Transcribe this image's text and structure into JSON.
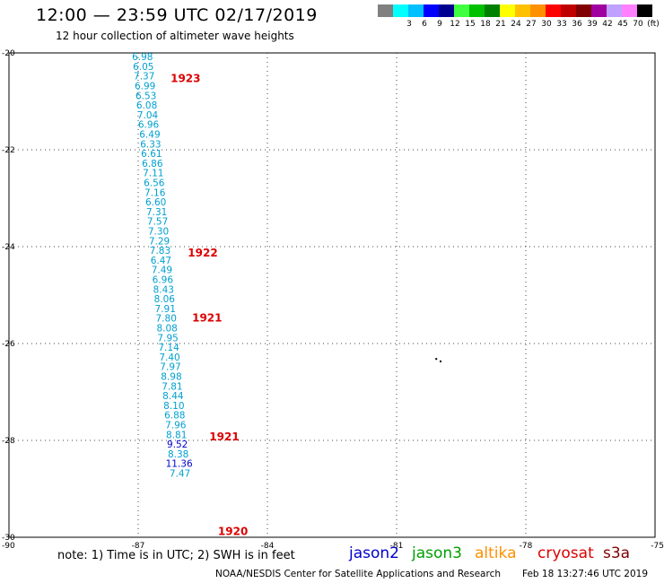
{
  "header": {
    "title": "12:00 — 23:59 UTC 02/17/2019",
    "subtitle": "12 hour collection of altimeter wave heights"
  },
  "legend": {
    "swatches": [
      {
        "color": "#808080",
        "label": ""
      },
      {
        "color": "#00ffff",
        "label": "3"
      },
      {
        "color": "#00c0ff",
        "label": "6"
      },
      {
        "color": "#0000ff",
        "label": "9"
      },
      {
        "color": "#000090",
        "label": "12"
      },
      {
        "color": "#40ff40",
        "label": "15"
      },
      {
        "color": "#00c000",
        "label": "18"
      },
      {
        "color": "#008000",
        "label": "21"
      },
      {
        "color": "#ffff00",
        "label": "24"
      },
      {
        "color": "#ffc000",
        "label": "27"
      },
      {
        "color": "#ff9000",
        "label": "30"
      },
      {
        "color": "#ff0000",
        "label": "33"
      },
      {
        "color": "#c00000",
        "label": "36"
      },
      {
        "color": "#800000",
        "label": "39"
      },
      {
        "color": "#a000a0",
        "label": "42"
      },
      {
        "color": "#c0a0ff",
        "label": "45"
      },
      {
        "color": "#ff80ff",
        "label": "70"
      },
      {
        "color": "#000000",
        "label": "(ft)"
      }
    ]
  },
  "map": {
    "lon_range": [
      -90,
      -75
    ],
    "lat_range": [
      -30,
      -20
    ],
    "lon_ticks": [
      "-90",
      "-87",
      "-84",
      "-81",
      "-78",
      "-75"
    ],
    "lat_ticks": [
      "-20",
      "-22",
      "-24",
      "-26",
      "-28",
      "-30"
    ],
    "lon_tick_values": [
      -90,
      -87,
      -84,
      -81,
      -78,
      -75
    ],
    "lat_tick_values": [
      -20,
      -22,
      -24,
      -26,
      -28,
      -30
    ],
    "grid": "dotted",
    "observations": [
      {
        "lon": -86.9,
        "lat": -20.15,
        "swh": "6.98",
        "color": "#00a0d0"
      },
      {
        "lon": -86.88,
        "lat": -20.35,
        "swh": "6.05",
        "color": "#00a0d0"
      },
      {
        "lon": -86.86,
        "lat": -20.55,
        "swh": "7.37",
        "color": "#00a0d0"
      },
      {
        "lon": -86.84,
        "lat": -20.75,
        "swh": "6.99",
        "color": "#00a0d0"
      },
      {
        "lon": -86.82,
        "lat": -20.95,
        "swh": "6.53",
        "color": "#00a0d0"
      },
      {
        "lon": -86.8,
        "lat": -21.15,
        "swh": "6.08",
        "color": "#00a0d0"
      },
      {
        "lon": -86.78,
        "lat": -21.35,
        "swh": "7.04",
        "color": "#00a0d0"
      },
      {
        "lon": -86.76,
        "lat": -21.55,
        "swh": "6.96",
        "color": "#00a0d0"
      },
      {
        "lon": -86.73,
        "lat": -21.75,
        "swh": "6.49",
        "color": "#00a0d0"
      },
      {
        "lon": -86.71,
        "lat": -21.95,
        "swh": "6.33",
        "color": "#00a0d0"
      },
      {
        "lon": -86.69,
        "lat": -22.15,
        "swh": "6.61",
        "color": "#00a0d0"
      },
      {
        "lon": -86.67,
        "lat": -22.35,
        "swh": "6.86",
        "color": "#00a0d0"
      },
      {
        "lon": -86.65,
        "lat": -22.55,
        "swh": "7.11",
        "color": "#00a0d0"
      },
      {
        "lon": -86.63,
        "lat": -22.75,
        "swh": "6.56",
        "color": "#00a0d0"
      },
      {
        "lon": -86.61,
        "lat": -22.95,
        "swh": "7.16",
        "color": "#00a0d0"
      },
      {
        "lon": -86.59,
        "lat": -23.15,
        "swh": "6.60",
        "color": "#00a0d0"
      },
      {
        "lon": -86.57,
        "lat": -23.35,
        "swh": "7.31",
        "color": "#00a0d0"
      },
      {
        "lon": -86.55,
        "lat": -23.55,
        "swh": "7.57",
        "color": "#00a0d0"
      },
      {
        "lon": -86.53,
        "lat": -23.75,
        "swh": "7.30",
        "color": "#00a0d0"
      },
      {
        "lon": -86.51,
        "lat": -23.95,
        "swh": "7.29",
        "color": "#00a0d0"
      },
      {
        "lon": -86.49,
        "lat": -24.15,
        "swh": "7.83",
        "color": "#00a0d0"
      },
      {
        "lon": -86.47,
        "lat": -24.35,
        "swh": "6.47",
        "color": "#00a0d0"
      },
      {
        "lon": -86.45,
        "lat": -24.55,
        "swh": "7.49",
        "color": "#00a0d0"
      },
      {
        "lon": -86.43,
        "lat": -24.75,
        "swh": "6.96",
        "color": "#00a0d0"
      },
      {
        "lon": -86.41,
        "lat": -24.95,
        "swh": "8.43",
        "color": "#00a0d0"
      },
      {
        "lon": -86.39,
        "lat": -25.15,
        "swh": "8.06",
        "color": "#00a0d0"
      },
      {
        "lon": -86.37,
        "lat": -25.35,
        "swh": "7.91",
        "color": "#00a0d0"
      },
      {
        "lon": -86.35,
        "lat": -25.55,
        "swh": "7.80",
        "color": "#00a0d0"
      },
      {
        "lon": -86.33,
        "lat": -25.75,
        "swh": "8.08",
        "color": "#00a0d0"
      },
      {
        "lon": -86.31,
        "lat": -25.95,
        "swh": "7.95",
        "color": "#00a0d0"
      },
      {
        "lon": -86.29,
        "lat": -26.15,
        "swh": "7.14",
        "color": "#00a0d0"
      },
      {
        "lon": -86.27,
        "lat": -26.35,
        "swh": "7.40",
        "color": "#00a0d0"
      },
      {
        "lon": -86.25,
        "lat": -26.55,
        "swh": "7.97",
        "color": "#00a0d0"
      },
      {
        "lon": -86.23,
        "lat": -26.75,
        "swh": "8.98",
        "color": "#00a0d0"
      },
      {
        "lon": -86.21,
        "lat": -26.95,
        "swh": "7.81",
        "color": "#00a0d0"
      },
      {
        "lon": -86.19,
        "lat": -27.15,
        "swh": "8.44",
        "color": "#00a0d0"
      },
      {
        "lon": -86.17,
        "lat": -27.35,
        "swh": "8.10",
        "color": "#00a0d0"
      },
      {
        "lon": -86.15,
        "lat": -27.55,
        "swh": "6.88",
        "color": "#00a0d0"
      },
      {
        "lon": -86.13,
        "lat": -27.75,
        "swh": "7.96",
        "color": "#00a0d0"
      },
      {
        "lon": -86.11,
        "lat": -27.95,
        "swh": "8.81",
        "color": "#00a0d0"
      },
      {
        "lon": -86.09,
        "lat": -28.15,
        "swh": "9.52",
        "color": "#0000cc"
      },
      {
        "lon": -86.07,
        "lat": -28.35,
        "swh": "8.38",
        "color": "#00a0d0"
      },
      {
        "lon": -86.05,
        "lat": -28.55,
        "swh": "11.36",
        "color": "#0000cc"
      },
      {
        "lon": -86.03,
        "lat": -28.75,
        "swh": "7.47",
        "color": "#00a0d0"
      }
    ],
    "time_labels": [
      {
        "lon": -85.9,
        "lat": -20.6,
        "text": "1923"
      },
      {
        "lon": -85.5,
        "lat": -24.2,
        "text": "1922"
      },
      {
        "lon": -85.4,
        "lat": -25.55,
        "text": "1921"
      },
      {
        "lon": -85.0,
        "lat": -28.0,
        "text": "1921"
      },
      {
        "lon": -84.8,
        "lat": -29.95,
        "text": "1920"
      }
    ],
    "time_label_color": "#dd0000",
    "islands": [
      {
        "lon": -80.1,
        "lat": -26.3
      },
      {
        "lon": -80.0,
        "lat": -26.35
      }
    ]
  },
  "footer": {
    "note": "note: 1) Time is in UTC; 2) SWH is in feet",
    "satellites": [
      {
        "name": "jason2",
        "color": "#0000cc"
      },
      {
        "name": "jason3",
        "color": "#00a000"
      },
      {
        "name": "altika",
        "color": "#ff9000"
      },
      {
        "name": "cryosat",
        "color": "#dd0000"
      },
      {
        "name": "s3a",
        "color": "#800000"
      }
    ],
    "credit": "NOAA/NESDIS Center for Satellite Applications and Research",
    "timestamp": "Feb 18 13:27:46 UTC 2019"
  }
}
